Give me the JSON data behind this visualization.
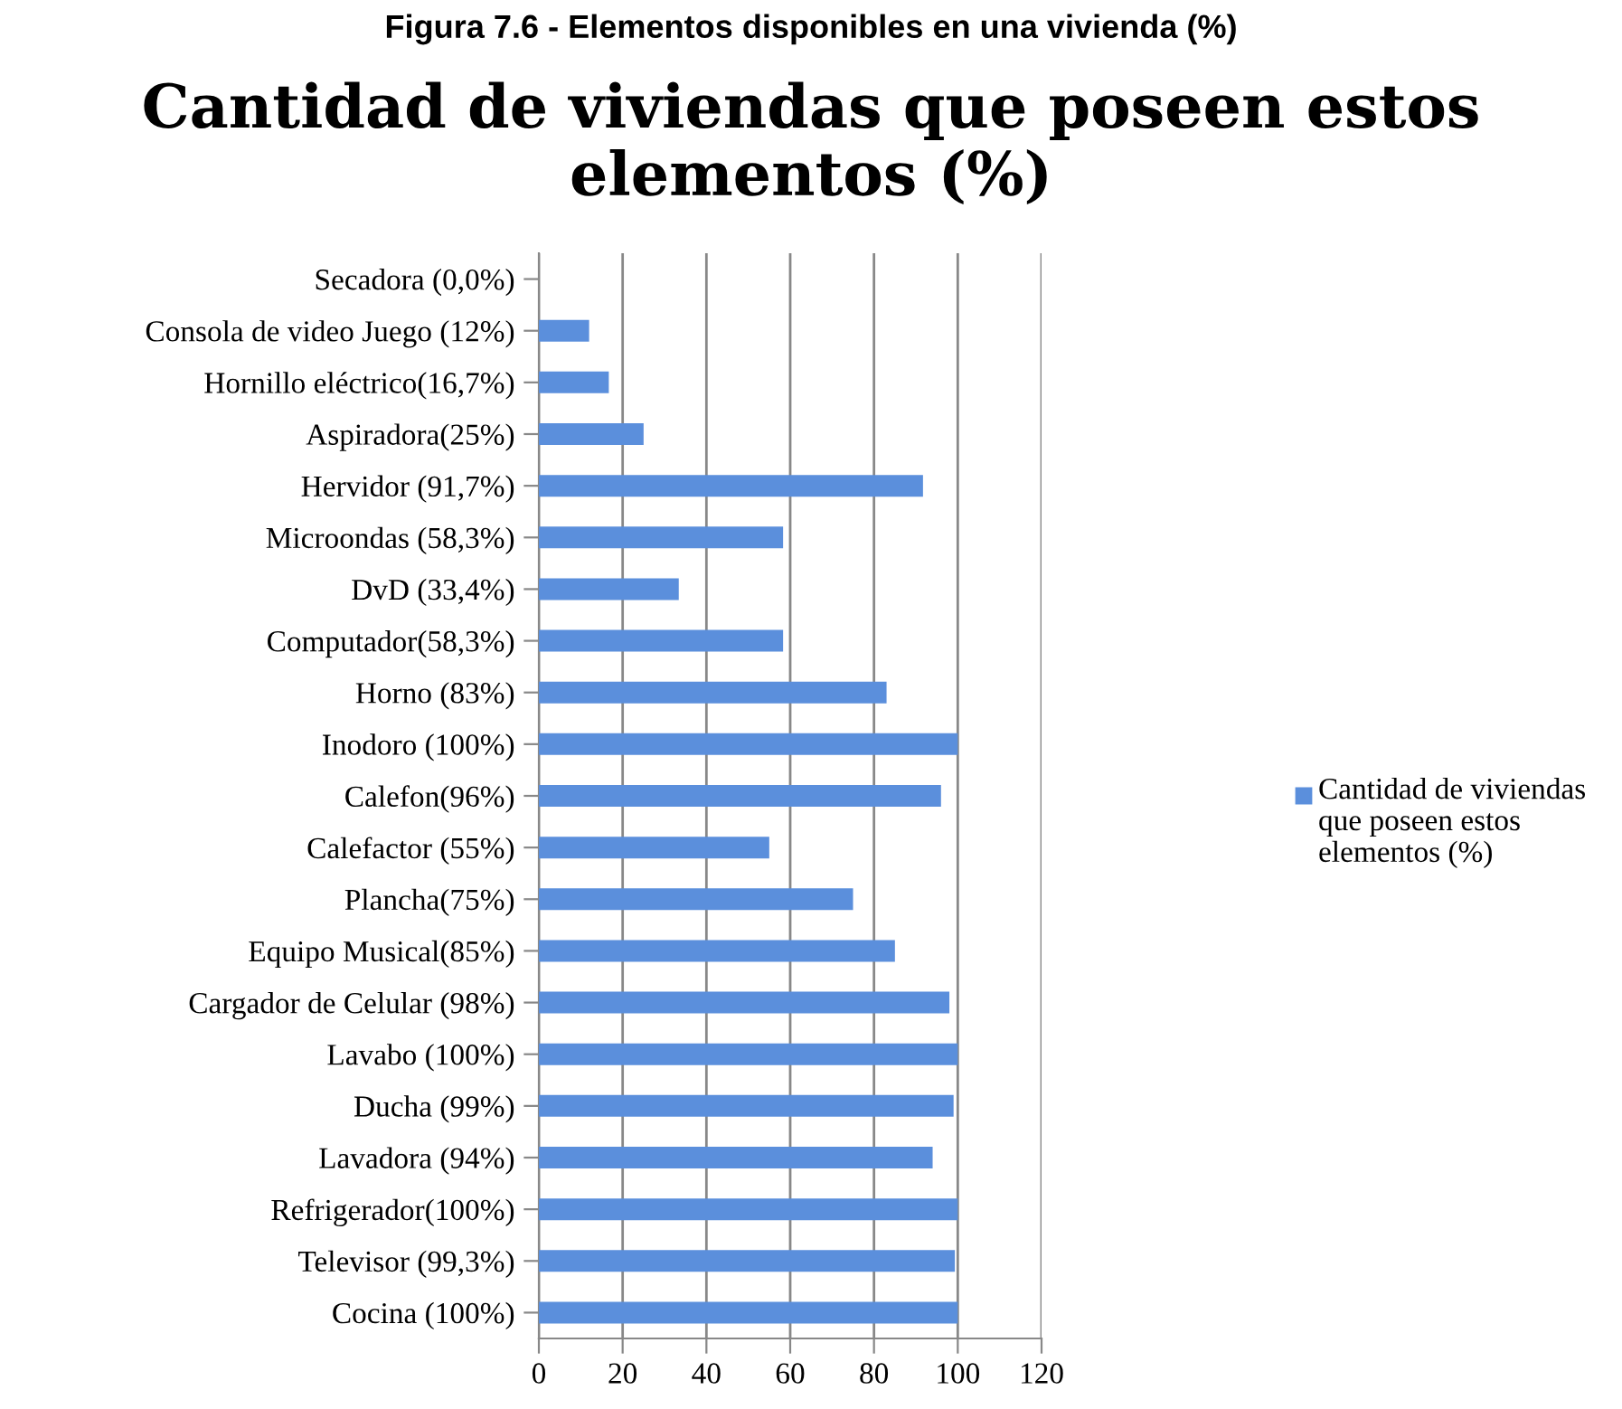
{
  "chart_data": {
    "type": "bar",
    "orientation": "horizontal",
    "title": "Cantidad de viviendas que poseen estos elementos (%)",
    "annotations": [
      "Figura 7.6 - Elementos disponibles en una vivienda (%)"
    ],
    "categories": [
      "Secadora (0,0%)",
      "Consola de video Juego (12%)",
      "Hornillo eléctrico(16,7%)",
      "Aspiradora(25%)",
      "Hervidor (91,7%)",
      "Microondas (58,3%)",
      "DvD (33,4%)",
      "Computador(58,3%)",
      "Horno (83%)",
      "Inodoro (100%)",
      "Calefon(96%)",
      "Calefactor (55%)",
      "Plancha(75%)",
      "Equipo Musical(85%)",
      "Cargador de Celular (98%)",
      "Lavabo (100%)",
      "Ducha (99%)",
      "Lavadora (94%)",
      "Refrigerador(100%)",
      "Televisor (99,3%)",
      "Cocina (100%)"
    ],
    "series": [
      {
        "name": "Cantidad de viviendas que poseen estos elementos (%)",
        "color": "#5b8fdc",
        "values": [
          0,
          12,
          16.7,
          25,
          91.7,
          58.3,
          33.4,
          58.3,
          83,
          100,
          96,
          55,
          75,
          85,
          98,
          100,
          99,
          94,
          100,
          99.3,
          100
        ]
      }
    ],
    "xlim": [
      0,
      120
    ],
    "xticks": [
      0,
      20,
      40,
      60,
      80,
      100,
      120
    ],
    "grid": "x",
    "legend": "right"
  }
}
